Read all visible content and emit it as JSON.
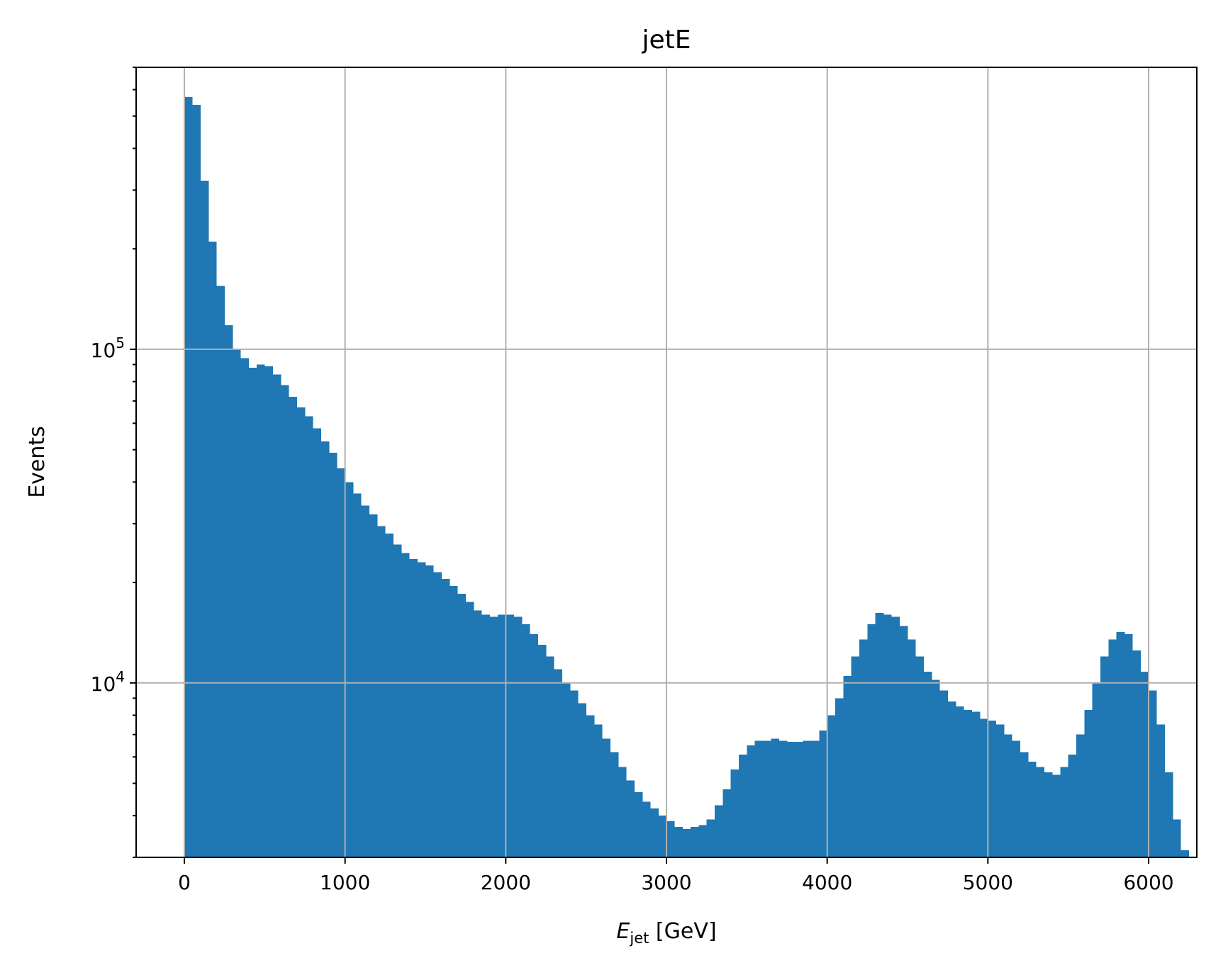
{
  "chart_data": {
    "type": "bar",
    "title": "jetE",
    "xlabel": {
      "symbol": "E",
      "subscript": "jet",
      "unit": " [GeV]"
    },
    "ylabel": "Events",
    "yscale": "log",
    "xlim": [
      -300,
      6300
    ],
    "ylim": [
      3000,
      700000
    ],
    "grid": true,
    "color": "#1f77b4",
    "bin_start": 0,
    "bin_width": 50,
    "xticks": [
      {
        "value": 0,
        "label": "0"
      },
      {
        "value": 1000,
        "label": "1000"
      },
      {
        "value": 2000,
        "label": "2000"
      },
      {
        "value": 3000,
        "label": "3000"
      },
      {
        "value": 4000,
        "label": "4000"
      },
      {
        "value": 5000,
        "label": "5000"
      },
      {
        "value": 6000,
        "label": "6000"
      }
    ],
    "yticks": [
      {
        "value": 10000,
        "base": "10",
        "exp": "4"
      },
      {
        "value": 100000,
        "base": "10",
        "exp": "5"
      }
    ],
    "values": [
      570000,
      540000,
      320000,
      210000,
      155000,
      118000,
      100000,
      94000,
      88000,
      90000,
      89000,
      84000,
      78000,
      72000,
      67000,
      63000,
      58000,
      53000,
      49000,
      44000,
      40000,
      37000,
      34000,
      32000,
      29500,
      28000,
      26000,
      24500,
      23500,
      23000,
      22500,
      21500,
      20500,
      19500,
      18500,
      17500,
      16500,
      16000,
      15800,
      16000,
      16000,
      15800,
      15000,
      14000,
      13000,
      12000,
      11000,
      10000,
      9500,
      8700,
      8000,
      7500,
      6800,
      6200,
      5600,
      5100,
      4700,
      4400,
      4200,
      4000,
      3850,
      3700,
      3650,
      3700,
      3750,
      3900,
      4300,
      4800,
      5500,
      6100,
      6500,
      6700,
      6700,
      6800,
      6700,
      6650,
      6650,
      6700,
      6700,
      7200,
      8000,
      9000,
      10500,
      12000,
      13500,
      15000,
      16200,
      16000,
      15800,
      14800,
      13500,
      12000,
      10800,
      10200,
      9500,
      8800,
      8500,
      8300,
      8200,
      7800,
      7700,
      7500,
      7000,
      6700,
      6200,
      5800,
      5600,
      5400,
      5300,
      5600,
      6100,
      7000,
      8300,
      10000,
      12000,
      13500,
      14200,
      14000,
      12500,
      10800,
      9500,
      7500,
      5400,
      3900,
      3150
    ]
  }
}
